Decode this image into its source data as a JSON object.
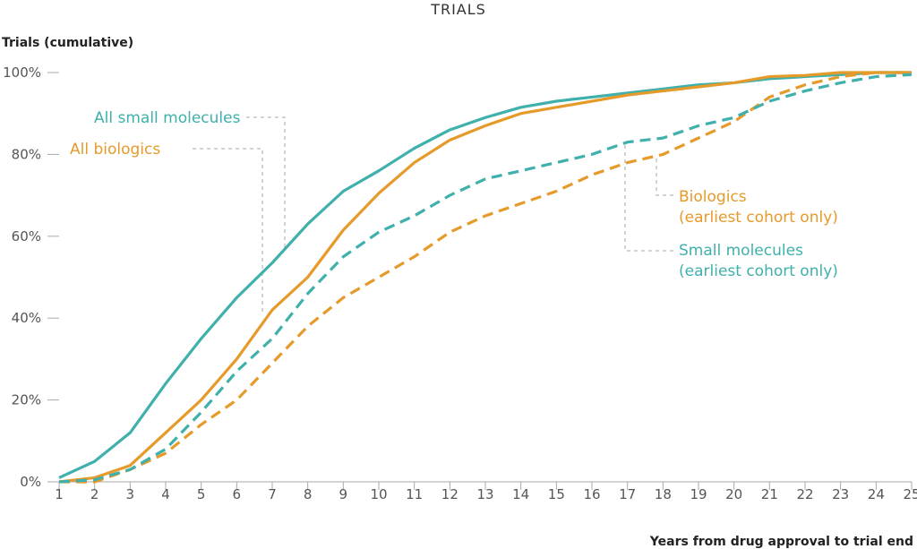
{
  "chart_data": {
    "type": "line",
    "title": "TRIALS",
    "ylabel": "Trials (cumulative)",
    "xlabel": "Years from drug approval to trial end",
    "x": [
      1,
      2,
      3,
      4,
      5,
      6,
      7,
      8,
      9,
      10,
      11,
      12,
      13,
      14,
      15,
      16,
      17,
      18,
      19,
      20,
      21,
      22,
      23,
      24,
      25
    ],
    "xlim": [
      1,
      25
    ],
    "ylim": [
      0,
      100
    ],
    "yticks": [
      0,
      20,
      40,
      60,
      80,
      100
    ],
    "ytick_labels": [
      "0%",
      "20%",
      "40%",
      "60%",
      "80%",
      "100%"
    ],
    "xtick_labels": [
      "1",
      "2",
      "3",
      "4",
      "5",
      "6",
      "7",
      "8",
      "9",
      "10",
      "11",
      "12",
      "13",
      "14",
      "15",
      "16",
      "17",
      "18",
      "19",
      "20",
      "21",
      "22",
      "23",
      "24",
      "25"
    ],
    "grid": false,
    "legend": "inline annotations",
    "series": [
      {
        "name": "All small molecules",
        "color": "#3fb0ac",
        "style": "solid",
        "values": [
          1,
          5,
          12,
          24,
          35,
          45,
          53.5,
          63,
          71,
          76,
          81.5,
          86,
          89,
          91.5,
          93,
          94,
          95,
          96,
          97,
          97.5,
          98.5,
          99,
          99.5,
          100,
          100
        ]
      },
      {
        "name": "All biologics",
        "color": "#e59a2a",
        "style": "solid",
        "values": [
          0,
          1,
          4,
          12,
          20,
          30,
          42,
          50,
          61.5,
          70.5,
          78,
          83.5,
          87,
          90,
          91.5,
          93,
          94.5,
          95.5,
          96.5,
          97.5,
          99,
          99.3,
          100,
          100,
          100
        ]
      },
      {
        "name": "Biologics (earliest cohort only)",
        "label_lines": [
          "Biologics",
          "(earliest cohort only)"
        ],
        "color": "#e59a2a",
        "style": "dashed",
        "values": [
          0,
          0,
          3,
          7,
          14,
          20,
          29,
          38,
          45,
          50,
          55,
          61,
          65,
          68,
          71,
          75,
          78,
          80,
          84,
          88,
          94,
          97,
          99,
          100,
          100
        ]
      },
      {
        "name": "Small molecules (earliest cohort only)",
        "label_lines": [
          "Small molecules",
          "(earliest cohort only)"
        ],
        "color": "#3fb0ac",
        "style": "dashed",
        "values": [
          0,
          0.5,
          3,
          8,
          17,
          27,
          35,
          46,
          55,
          61,
          65,
          70,
          74,
          76,
          78,
          80,
          83,
          84,
          87,
          89,
          93,
          95.5,
          97.5,
          99,
          99.5
        ]
      }
    ]
  }
}
